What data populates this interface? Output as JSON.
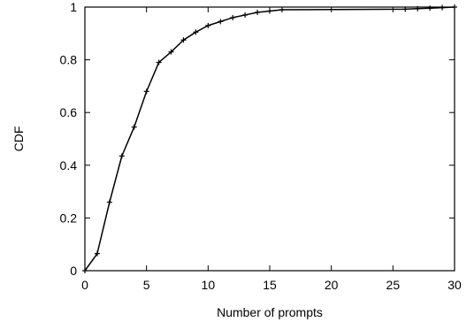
{
  "chart_data": {
    "type": "line",
    "title": "",
    "xlabel": "Number of prompts",
    "ylabel": "CDF",
    "xlim": [
      0,
      30
    ],
    "ylim": [
      0,
      1
    ],
    "x_ticks": [
      "0",
      "5",
      "10",
      "15",
      "20",
      "25",
      "30"
    ],
    "y_ticks": [
      "0",
      "0.2",
      "0.4",
      "0.6",
      "0.8",
      "1"
    ],
    "grid": false,
    "legend": "none",
    "series": [
      {
        "color": "#000000",
        "marker": "plus",
        "x": [
          0,
          1,
          2,
          3,
          4,
          5,
          6,
          7,
          8,
          9,
          10,
          11,
          12,
          13,
          14,
          15,
          16,
          26,
          27,
          28,
          29,
          30
        ],
        "y": [
          0.0,
          0.065,
          0.26,
          0.435,
          0.545,
          0.68,
          0.79,
          0.83,
          0.875,
          0.905,
          0.93,
          0.945,
          0.96,
          0.97,
          0.98,
          0.985,
          0.99,
          0.992,
          0.994,
          0.996,
          0.998,
          1.0
        ]
      }
    ]
  }
}
